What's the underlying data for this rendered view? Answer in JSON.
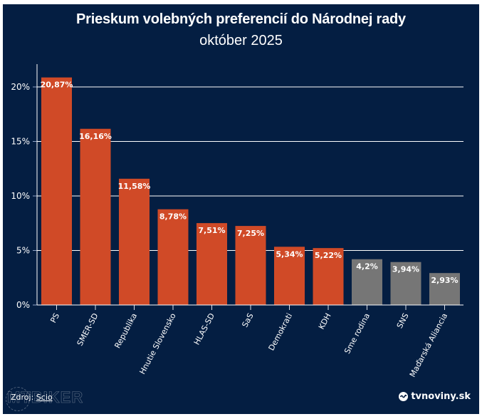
{
  "header": {
    "title": "Prieskum volebných preferencií do Národnej rady",
    "subtitle": "október 2025"
  },
  "footer": {
    "source_prefix": "Zdroj: ",
    "source_link": "Scio",
    "watermark": "MTBIKER",
    "brand": "tvnoviny.sk"
  },
  "colors": {
    "background": "#041e42",
    "highlight_bar": "#d04a27",
    "other_bar": "#767676",
    "grid": "#ffffff"
  },
  "chart_data": {
    "type": "bar",
    "title": "Prieskum volebných preferencií do Národnej rady",
    "subtitle": "október 2025",
    "xlabel": "",
    "ylabel": "",
    "ylim": [
      0,
      22
    ],
    "yticks": [
      0,
      5,
      10,
      15,
      20
    ],
    "ytick_labels": [
      "0%",
      "5%",
      "10%",
      "15%",
      "20%"
    ],
    "grid": true,
    "categories": [
      "PS",
      "SMER-SD",
      "Republika",
      "Hnutie Slovensko",
      "HLAS-SD",
      "SaS",
      "Demokrati",
      "KDH",
      "Sme rodina",
      "SNS",
      "Maďarská Aliancia"
    ],
    "values": [
      20.87,
      16.16,
      11.58,
      8.78,
      7.51,
      7.25,
      5.34,
      5.22,
      4.2,
      3.94,
      2.93
    ],
    "value_labels": [
      "20,87%",
      "16,16%",
      "11,58%",
      "8,78%",
      "7,51%",
      "7,25%",
      "5,34%",
      "5,22%",
      "4,2%",
      "3,94%",
      "2,93%"
    ],
    "bar_groups": [
      "above",
      "above",
      "above",
      "above",
      "above",
      "above",
      "above",
      "above",
      "below",
      "below",
      "below"
    ],
    "legend": "none"
  }
}
